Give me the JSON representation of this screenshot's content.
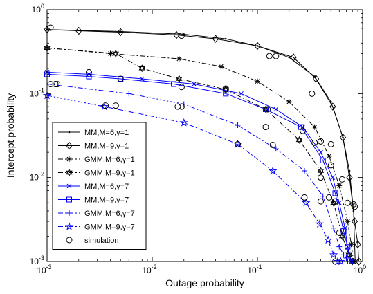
{
  "chart_data": {
    "type": "line",
    "title": "",
    "xlabel": "Outage probability",
    "ylabel": "Intercept probability",
    "xscale": "log",
    "yscale": "log",
    "xlim": [
      0.001,
      1
    ],
    "ylim": [
      0.001,
      1
    ],
    "x_ticks": [
      {
        "value": 0.001,
        "base": "10",
        "exp": "-3"
      },
      {
        "value": 0.01,
        "base": "10",
        "exp": "-2"
      },
      {
        "value": 0.1,
        "base": "10",
        "exp": "-1"
      },
      {
        "value": 1,
        "base": "10",
        "exp": "0"
      }
    ],
    "y_ticks": [
      {
        "value": 0.001,
        "base": "10",
        "exp": "-3"
      },
      {
        "value": 0.01,
        "base": "10",
        "exp": "-2"
      },
      {
        "value": 0.1,
        "base": "10",
        "exp": "-1"
      },
      {
        "value": 1,
        "base": "10",
        "exp": "0"
      }
    ],
    "grid": false,
    "legend_position": "bottom-left",
    "series": [
      {
        "legend_label": "MM,M=6,γ=1",
        "color": "#000000",
        "dash": "solid",
        "marker": "dot",
        "x": [
          0.001,
          0.005,
          0.02,
          0.05,
          0.1,
          0.2,
          0.35,
          0.5,
          0.65,
          0.75,
          0.82,
          0.85
        ],
        "y": [
          0.58,
          0.55,
          0.51,
          0.45,
          0.37,
          0.27,
          0.16,
          0.08,
          0.03,
          0.012,
          0.004,
          0.001
        ]
      },
      {
        "legend_label": "MM,M=9,γ=1",
        "color": "#000000",
        "dash": "solid",
        "marker": "diamond",
        "x": [
          0.001,
          0.002,
          0.005,
          0.017,
          0.04,
          0.1,
          0.22,
          0.36,
          0.52,
          0.65,
          0.75,
          0.84,
          0.9,
          0.92
        ],
        "y": [
          0.58,
          0.56,
          0.54,
          0.5,
          0.45,
          0.37,
          0.27,
          0.15,
          0.07,
          0.03,
          0.01,
          0.003,
          0.0016,
          0.001
        ]
      },
      {
        "legend_label": "GMM,M=6,γ=1",
        "color": "#000000",
        "dash": "dashdot",
        "marker": "star",
        "x": [
          0.001,
          0.004,
          0.018,
          0.045,
          0.1,
          0.2,
          0.35,
          0.48,
          0.6,
          0.72,
          0.78,
          0.82
        ],
        "y": [
          0.35,
          0.3,
          0.26,
          0.21,
          0.14,
          0.08,
          0.04,
          0.018,
          0.008,
          0.003,
          0.0016,
          0.001
        ]
      },
      {
        "legend_label": "GMM,M=9,γ=1",
        "color": "#000000",
        "dash": "dashdot",
        "marker": "hexagram",
        "x": [
          0.001,
          0.0045,
          0.008,
          0.018,
          0.05,
          0.12,
          0.25,
          0.4,
          0.53,
          0.64,
          0.74,
          0.8
        ],
        "y": [
          0.35,
          0.3,
          0.2,
          0.15,
          0.112,
          0.065,
          0.028,
          0.012,
          0.005,
          0.002,
          0.0012,
          0.001
        ]
      },
      {
        "legend_label": "MM,M=6,γ=7",
        "color": "#0000ff",
        "dash": "solid",
        "marker": "x",
        "x": [
          0.001,
          0.0025,
          0.008,
          0.025,
          0.07,
          0.15,
          0.27,
          0.4,
          0.52,
          0.6,
          0.68,
          0.72,
          0.78
        ],
        "y": [
          0.18,
          0.17,
          0.15,
          0.13,
          0.1,
          0.065,
          0.04,
          0.02,
          0.01,
          0.005,
          0.0025,
          0.0015,
          0.001
        ]
      },
      {
        "legend_label": "MM,M=9,γ=7",
        "color": "#0000ff",
        "dash": "solid",
        "marker": "square",
        "x": [
          0.001,
          0.0025,
          0.005,
          0.016,
          0.05,
          0.12,
          0.26,
          0.42,
          0.55,
          0.66,
          0.72,
          0.76
        ],
        "y": [
          0.17,
          0.16,
          0.15,
          0.13,
          0.1,
          0.065,
          0.04,
          0.016,
          0.0065,
          0.0023,
          0.0015,
          0.001
        ]
      },
      {
        "legend_label": "GMM,M=6,γ=7",
        "color": "#0000ff",
        "dash": "dashdot",
        "marker": "plus",
        "x": [
          0.001,
          0.006,
          0.02,
          0.065,
          0.15,
          0.28,
          0.42,
          0.53,
          0.6,
          0.66,
          0.7,
          0.72
        ],
        "y": [
          0.13,
          0.1,
          0.075,
          0.042,
          0.022,
          0.012,
          0.006,
          0.0025,
          0.0015,
          0.0012,
          0.0011,
          0.001
        ]
      },
      {
        "legend_label": "GMM,M=9,γ=7",
        "color": "#0000ff",
        "dash": "dashdot",
        "marker": "pentagram",
        "x": [
          0.001,
          0.0035,
          0.02,
          0.065,
          0.14,
          0.29,
          0.39,
          0.47,
          0.53,
          0.58,
          0.62
        ],
        "y": [
          0.095,
          0.07,
          0.045,
          0.025,
          0.012,
          0.005,
          0.0028,
          0.0018,
          0.0012,
          0.001,
          0.001
        ]
      },
      {
        "legend_label": "simulation",
        "color": "#000000",
        "dash": "none",
        "marker": "circle",
        "x": [
          0.00108,
          0.019,
          0.13,
          0.15,
          0.33,
          0.4,
          0.5,
          0.72,
          0.84,
          0.00125,
          0.0025,
          0.005,
          0.019,
          0.05,
          0.125,
          0.27,
          0.35,
          0.5,
          0.64,
          0.82,
          0.00108,
          0.0045,
          0.0175,
          0.05,
          0.12,
          0.4,
          0.48,
          0.55,
          0.6,
          0.0012,
          0.0036,
          0.019,
          0.065,
          0.14,
          0.28,
          0.4,
          0.55
        ],
        "y": [
          0.61,
          0.49,
          0.28,
          0.28,
          0.1,
          0.027,
          0.025,
          0.005,
          0.0045,
          0.13,
          0.18,
          0.15,
          0.12,
          0.115,
          0.065,
          0.036,
          0.026,
          0.014,
          0.0095,
          0.0048,
          0.13,
          0.072,
          0.07,
          0.112,
          0.04,
          0.01,
          0.0058,
          0.0052,
          0.0022,
          0.13,
          0.072,
          0.07,
          0.025,
          0.0245,
          0.0058,
          0.0052,
          0.001
        ]
      }
    ]
  }
}
